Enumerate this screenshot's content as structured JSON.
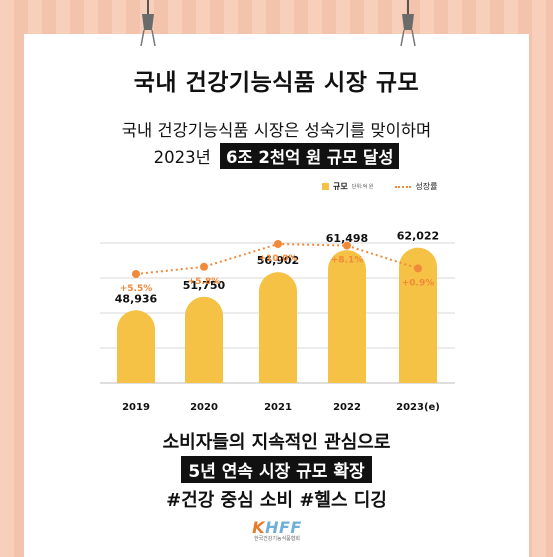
{
  "title": "국내 건강기능식품 시장 규모",
  "subtitle_line1": "국내 건강기능식품 시장은 성숙기를 맞이하며",
  "subtitle_line2_prefix": "2023년",
  "subtitle_line2_highlight": "6조 2천억 원 규모 달성",
  "legend": {
    "bar_label": "규모",
    "bar_unit": "단위:억 원",
    "line_label": "성장률"
  },
  "chart_data": {
    "type": "bar",
    "categories": [
      "2019",
      "2020",
      "2021",
      "2022",
      "2023(e)"
    ],
    "series": [
      {
        "name": "규모",
        "values": [
          48936,
          51750,
          56902,
          61498,
          62022
        ],
        "labels": [
          "48,936",
          "51,750",
          "56,902",
          "61,498",
          "62,022"
        ]
      },
      {
        "name": "성장률",
        "values": [
          5.5,
          5.8,
          10.0,
          8.1,
          0.9
        ],
        "labels": [
          "+5.5%",
          "+5.8%",
          "+10.0%",
          "+8.1%",
          "+0.9%"
        ]
      }
    ],
    "bar_color": "#f5c245",
    "line_color": "#f08a3a",
    "grid": true,
    "legend_position": "top-right"
  },
  "body_line1": "소비자들의 지속적인 관심으로",
  "body_line2": "5년 연속 시장 규모 확장",
  "body_line3": "#건강 중심 소비 #헬스 디깅",
  "logo": {
    "mark_prefix": "K",
    "mark_rest": "HFF",
    "org_name": "한국건강기능식품협회"
  }
}
